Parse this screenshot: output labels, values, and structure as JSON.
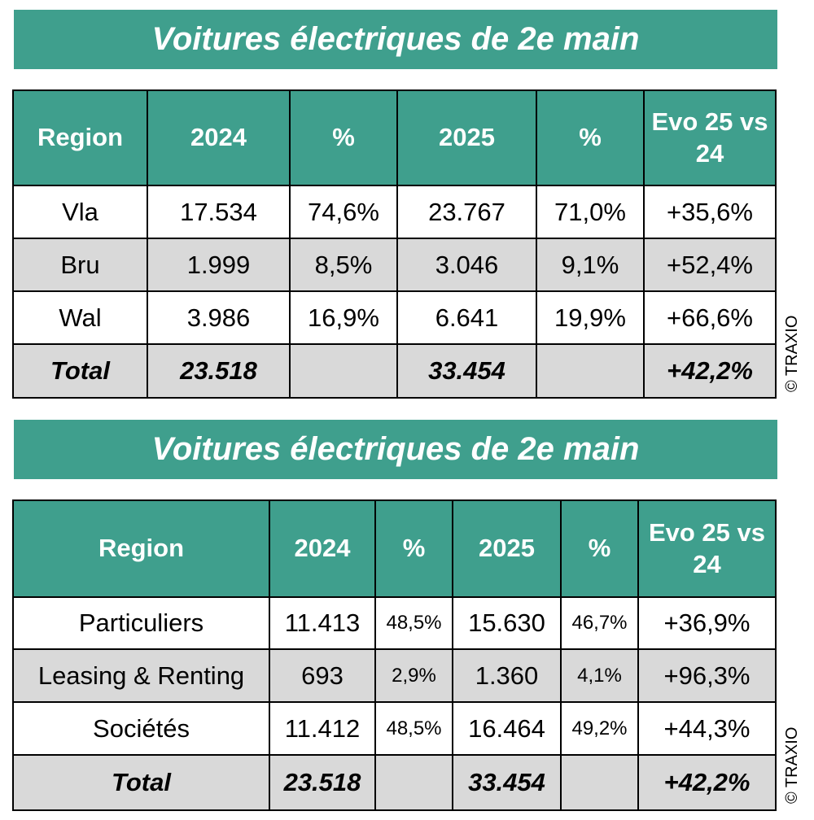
{
  "tables": [
    {
      "title": "Voitures électriques de 2e main",
      "header": [
        "Region",
        "2024",
        "%",
        "2025",
        "%",
        "Evo 25 vs 24"
      ],
      "rows": [
        [
          "Vla",
          "17.534",
          "74,6%",
          "23.767",
          "71,0%",
          "+35,6%"
        ],
        [
          "Bru",
          "1.999",
          "8,5%",
          "3.046",
          "9,1%",
          "+52,4%"
        ],
        [
          "Wal",
          "3.986",
          "16,9%",
          "6.641",
          "19,9%",
          "+66,6%"
        ],
        [
          "Total",
          "23.518",
          null,
          "33.454",
          null,
          "+42,2%"
        ]
      ],
      "copyright": "© TRAXIO"
    },
    {
      "title": "Voitures électriques de 2e main",
      "header": [
        "Region",
        "2024",
        "%",
        "2025",
        "%",
        "Evo 25 vs 24"
      ],
      "rows": [
        [
          "Particuliers",
          "11.413",
          "48,5%",
          "15.630",
          "46,7%",
          "+36,9%"
        ],
        [
          "Leasing & Renting",
          "693",
          "2,9%",
          "1.360",
          "4,1%",
          "+96,3%"
        ],
        [
          "Sociétés",
          "11.412",
          "48,5%",
          "16.464",
          "49,2%",
          "+44,3%"
        ],
        [
          "Total",
          "23.518",
          null,
          "33.454",
          null,
          "+42,2%"
        ]
      ],
      "copyright": "© TRAXIO"
    }
  ]
}
